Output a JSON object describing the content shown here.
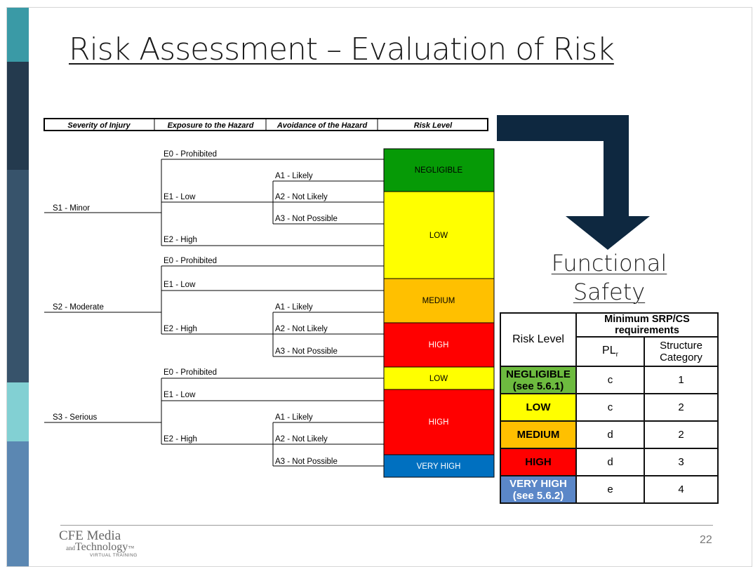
{
  "title": "Risk Assessment – Evaluation of Risk",
  "sidebar_colors": [
    "#3a9aa6",
    "#243a4e",
    "#37536b",
    "#82d0d3",
    "#5b87b2"
  ],
  "diagram": {
    "headers": [
      "Severity of Injury",
      "Exposure to the Hazard",
      "Avoidance of the Hazard",
      "Risk Level"
    ],
    "severity": [
      "S1 - Minor",
      "S2 - Moderate",
      "S3 - Serious"
    ],
    "exposure": {
      "e0": "E0 - Prohibited",
      "e1": "E1 - Low",
      "e2": "E2 - High"
    },
    "avoidance": {
      "a1": "A1 - Likely",
      "a2": "A2 - Not Likely",
      "a3": "A3  - Not Possible"
    },
    "risk_blocks": [
      {
        "label": "NEGLIGIBLE",
        "color": "#069a06",
        "text_color": "#000000"
      },
      {
        "label": "LOW",
        "color": "#ffff00",
        "text_color": "#000000"
      },
      {
        "label": "MEDIUM",
        "color": "#ffc000",
        "text_color": "#000000"
      },
      {
        "label": "HIGH",
        "color": "#ff0000",
        "text_color": "#ffffff"
      },
      {
        "label": "LOW",
        "color": "#ffff00",
        "text_color": "#000000"
      },
      {
        "label": "HIGH",
        "color": "#ff0000",
        "text_color": "#ffffff"
      },
      {
        "label": "VERY HIGH",
        "color": "#0070c0",
        "text_color": "#ffffff"
      }
    ]
  },
  "arrow_color": "#0e2840",
  "functional_safety": "Functional Safety",
  "requirements": {
    "header": "Minimum SRP/CS requirements",
    "col_risk": "Risk Level",
    "col_pl": "PL",
    "col_pl_sub": "r",
    "col_cat": "Structure Category",
    "rows": [
      {
        "risk": "NEGLIGIBLE",
        "note": "(see 5.6.1)",
        "pl": "c",
        "cat": "1",
        "color": "#6dbb3f",
        "text_color": "#000000"
      },
      {
        "risk": "LOW",
        "note": "",
        "pl": "c",
        "cat": "2",
        "color": "#ffff00",
        "text_color": "#000000"
      },
      {
        "risk": "MEDIUM",
        "note": "",
        "pl": "d",
        "cat": "2",
        "color": "#ffc000",
        "text_color": "#000000"
      },
      {
        "risk": "HIGH",
        "note": "",
        "pl": "d",
        "cat": "3",
        "color": "#ff0000",
        "text_color": "#000000"
      },
      {
        "risk": "VERY HIGH",
        "note": "(see 5.6.2)",
        "pl": "e",
        "cat": "4",
        "color": "#5b87c8",
        "text_color": "#ffffff"
      }
    ]
  },
  "footer": {
    "logo_line1": "CFE Media",
    "logo_and": "and",
    "logo_line2": "Technology",
    "logo_tm": "™",
    "logo_line3": "VIRTUAL TRAINING",
    "page_number": "22"
  }
}
